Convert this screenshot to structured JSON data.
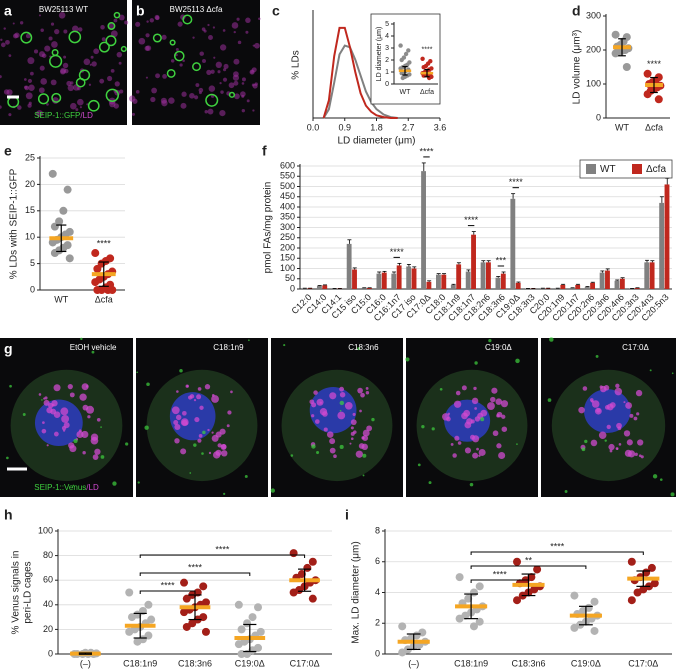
{
  "images": [
    {
      "panel": "a",
      "label": "BW25113 WT",
      "stain": [
        "SEIP-1::GFP",
        "/LD"
      ]
    },
    {
      "panel": "b",
      "label": "BW25113 Δcfa"
    },
    {
      "panel": "g",
      "label": "EtOH vehicle",
      "stain": [
        "SEIP-1::Venus",
        "/LD"
      ]
    },
    {
      "label": "C18:1n9"
    },
    {
      "label": "C18:3n6"
    },
    {
      "label": "C19:0Δ"
    },
    {
      "label": "C17:0Δ"
    }
  ],
  "chart_data": [
    {
      "type": "line",
      "panel": "c",
      "xlabel": "LD diameter (μm)",
      "ylabel": "% LDs",
      "x": [
        0.3,
        0.45,
        0.6,
        0.75,
        0.9,
        1.05,
        1.2,
        1.35,
        1.5,
        1.65,
        1.8,
        2.0,
        2.2,
        2.4
      ],
      "series": [
        {
          "color": "#808080",
          "values": [
            0,
            5,
            20,
            36,
            41,
            40,
            33,
            24,
            15,
            9,
            5,
            2,
            0.5,
            0
          ]
        },
        {
          "color": "#c0281e",
          "values": [
            0,
            10,
            35,
            51,
            51,
            40,
            26,
            14,
            7,
            3.5,
            1.5,
            0.5,
            0,
            0
          ]
        }
      ],
      "xlim": [
        0,
        3.6
      ],
      "xticks": [
        {
          "value": 0,
          "label": "0.0"
        },
        0.9,
        1.8,
        2.7,
        3.6
      ],
      "ylim": [
        0,
        60
      ]
    },
    {
      "type": "dot",
      "ylabel": "LD diameter (μm)",
      "categories": [
        "WT",
        "Δcfa"
      ],
      "colors": [
        "#8c8c8c",
        "#c0281e"
      ],
      "groups": [
        {
          "points": [
            3.2,
            2.8,
            2.5,
            2.2,
            2.0,
            1.8,
            1.6,
            1.5,
            1.4,
            1.3,
            1.2,
            1.1,
            1.0,
            0.9,
            0.8,
            0.7,
            0.6,
            0.5
          ],
          "mean": 1.1,
          "sd": 0.35
        },
        {
          "points": [
            2.1,
            1.9,
            1.7,
            1.5,
            1.4,
            1.3,
            1.2,
            1.1,
            1.0,
            0.9,
            0.85,
            0.8,
            0.75,
            0.7,
            0.6,
            0.5
          ],
          "mean": 0.9,
          "sd": 0.3
        }
      ],
      "ylim": [
        0,
        5
      ],
      "yticks": [
        0,
        1,
        2,
        3,
        4,
        5
      ],
      "annotations": [
        {
          "text": "****",
          "category": "Δcfa"
        }
      ]
    },
    {
      "type": "dot",
      "panel": "d",
      "ylabel": "LD volume (μm³)",
      "categories": [
        "WT",
        "Δcfa"
      ],
      "colors": [
        "#999999",
        "#c0281e"
      ],
      "groups": [
        {
          "points": [
            245,
            238,
            225,
            215,
            210,
            205,
            200,
            198,
            195,
            190,
            150
          ],
          "mean": 208,
          "sd": 25
        },
        {
          "points": [
            130,
            120,
            110,
            105,
            100,
            95,
            90,
            85,
            80,
            70,
            55
          ],
          "mean": 97,
          "sd": 22
        }
      ],
      "ylim": [
        0,
        300
      ],
      "yticks": [
        0,
        100,
        200,
        300
      ],
      "annotations": [
        {
          "text": "****",
          "category": "Δcfa"
        }
      ]
    },
    {
      "type": "dot",
      "panel": "e",
      "ylabel": "% LDs with SEIP-1::GFP",
      "categories": [
        "WT",
        "Δcfa"
      ],
      "colors": [
        "#999999",
        "#c0281e"
      ],
      "groups": [
        {
          "points": [
            22,
            19,
            15,
            13,
            12,
            11,
            10.5,
            10,
            9.5,
            9,
            8.5,
            8,
            7.5,
            7,
            6
          ],
          "mean": 9.8,
          "sd": 2.5
        },
        {
          "points": [
            7,
            6,
            5.5,
            5,
            4,
            3.5,
            3,
            2.5,
            2,
            1.5,
            1,
            0.5,
            0,
            0,
            0,
            0
          ],
          "mean": 3,
          "sd": 2.3
        }
      ],
      "ylim": [
        0,
        25
      ],
      "yticks": [
        0,
        5,
        10,
        15,
        20,
        25
      ],
      "grid": true,
      "annotations": [
        {
          "text": "****",
          "category": "Δcfa"
        }
      ]
    },
    {
      "type": "bar",
      "panel": "f",
      "ylabel": "pmol FAs/mg protein",
      "legend": "upper right",
      "categories": [
        "C12:0",
        "C14:0",
        "C14:1",
        "C15 iso",
        "C15:0",
        "C16:0",
        "C16:1n7",
        "C17 iso",
        "C17:0Δ",
        "C18:0",
        "C18:1n9",
        "C18:1n7",
        "C18:2n6",
        "C18:3n6",
        "C19:0Δ",
        "C18:3n3",
        "C20:0",
        "C20:1n9",
        "C20:1n7",
        "C20:2n6",
        "C20:3n6",
        "C20:4n6",
        "C20:3n3",
        "C20:4n3",
        "C20:5n3"
      ],
      "series": [
        {
          "name": "WT",
          "color": "#808080",
          "values": [
            3,
            15,
            2,
            220,
            5,
            75,
            75,
            110,
            575,
            70,
            20,
            85,
            130,
            55,
            440,
            2,
            3,
            3,
            5,
            10,
            80,
            40,
            2,
            130,
            420
          ],
          "errors": [
            1,
            2,
            1,
            20,
            1,
            8,
            8,
            10,
            40,
            5,
            3,
            8,
            8,
            6,
            25,
            1,
            1,
            1,
            1,
            2,
            8,
            4,
            1,
            10,
            30
          ]
        },
        {
          "name": "Δcfa",
          "color": "#c0281e",
          "values": [
            3,
            18,
            2,
            95,
            5,
            80,
            115,
            100,
            35,
            70,
            120,
            265,
            130,
            75,
            30,
            2,
            3,
            20,
            20,
            30,
            90,
            50,
            5,
            130,
            510
          ],
          "errors": [
            1,
            2,
            1,
            8,
            1,
            6,
            10,
            8,
            5,
            5,
            8,
            15,
            8,
            8,
            4,
            1,
            1,
            3,
            3,
            3,
            8,
            5,
            1,
            8,
            30
          ]
        }
      ],
      "ylim": [
        0,
        600
      ],
      "yticks": [
        0,
        50,
        100,
        150,
        200,
        250,
        300,
        350,
        400,
        450,
        500,
        550,
        600
      ],
      "grid": true,
      "annotations": [
        {
          "text": "****",
          "category": "C16:1n7"
        },
        {
          "text": "****",
          "category": "C17:0Δ"
        },
        {
          "text": "****",
          "category": "C18:1n7"
        },
        {
          "text": "***",
          "category": "C18:3n6"
        },
        {
          "text": "****",
          "category": "C19:0Δ"
        }
      ]
    },
    {
      "type": "dot",
      "panel": "h",
      "ylabel": [
        "% Venus signals in",
        "peri-LD cages"
      ],
      "categories": [
        "(–)",
        "C18:1n9",
        "C18:3n6",
        "C19:0Δ",
        "C17:0Δ"
      ],
      "colors": [
        "#b3b3b3",
        "#b3b3b3",
        "#a31f18",
        "#b3b3b3",
        "#a31f18"
      ],
      "groups": [
        {
          "points": [
            0,
            0,
            0,
            0,
            0,
            0.5,
            1,
            1
          ],
          "mean": 0.3,
          "sd": 0.5
        },
        {
          "points": [
            50,
            40,
            35,
            32,
            30,
            28,
            25,
            22,
            20,
            18,
            15,
            12,
            10
          ],
          "mean": 23,
          "sd": 10
        },
        {
          "points": [
            58,
            55,
            50,
            48,
            45,
            42,
            40,
            38,
            36,
            34,
            30,
            28,
            25,
            22,
            18
          ],
          "mean": 38,
          "sd": 10
        },
        {
          "points": [
            40,
            38,
            30,
            25,
            20,
            18,
            15,
            12,
            10,
            8,
            5,
            3,
            0,
            0
          ],
          "mean": 13,
          "sd": 11
        },
        {
          "points": [
            82,
            75,
            70,
            65,
            62,
            60,
            58,
            55,
            52,
            50,
            45
          ],
          "mean": 60,
          "sd": 9
        }
      ],
      "ylim": [
        0,
        100
      ],
      "yticks": [
        0,
        20,
        40,
        60,
        80,
        100
      ],
      "grid": true,
      "brackets": [
        {
          "text": "****",
          "from": "C18:1n9",
          "to": "C18:3n6"
        },
        {
          "text": "****",
          "from": "C18:1n9",
          "to": "C19:0Δ"
        },
        {
          "text": "****",
          "from": "C18:1n9",
          "to": "C17:0Δ"
        }
      ]
    },
    {
      "type": "dot",
      "panel": "i",
      "ylabel": "Max. LD diameter (μm)",
      "categories": [
        "(–)",
        "C18:1n9",
        "C18:3n6",
        "C19:0Δ",
        "C17:0Δ"
      ],
      "colors": [
        "#b3b3b3",
        "#b3b3b3",
        "#a31f18",
        "#b3b3b3",
        "#a31f18"
      ],
      "groups": [
        {
          "points": [
            1.8,
            1.4,
            1.2,
            1.0,
            0.9,
            0.8,
            0.6,
            0.5,
            0.3,
            0.1
          ],
          "mean": 0.8,
          "sd": 0.5
        },
        {
          "points": [
            5.0,
            4.4,
            4.0,
            3.6,
            3.3,
            3.1,
            2.9,
            2.7,
            2.5,
            2.3,
            2.1,
            1.8
          ],
          "mean": 3.1,
          "sd": 0.8
        },
        {
          "points": [
            6.0,
            5.5,
            5.0,
            4.8,
            4.6,
            4.4,
            4.2,
            4.0,
            3.8,
            3.5
          ],
          "mean": 4.5,
          "sd": 0.7
        },
        {
          "points": [
            3.8,
            3.4,
            3.0,
            2.8,
            2.6,
            2.5,
            2.3,
            2.1,
            1.9,
            1.7,
            1.5
          ],
          "mean": 2.5,
          "sd": 0.6
        },
        {
          "points": [
            6.0,
            5.6,
            5.3,
            5.0,
            4.8,
            4.6,
            4.4,
            4.2,
            4.0,
            3.5
          ],
          "mean": 4.9,
          "sd": 0.5
        }
      ],
      "ylim": [
        0,
        8
      ],
      "yticks": [
        0,
        2,
        4,
        6,
        8
      ],
      "grid": true,
      "brackets": [
        {
          "text": "****",
          "from": "C18:1n9",
          "to": "C18:3n6"
        },
        {
          "text": "**",
          "from": "C18:1n9",
          "to": "C19:0Δ"
        },
        {
          "text": "****",
          "from": "C18:1n9",
          "to": "C17:0Δ"
        }
      ]
    }
  ]
}
